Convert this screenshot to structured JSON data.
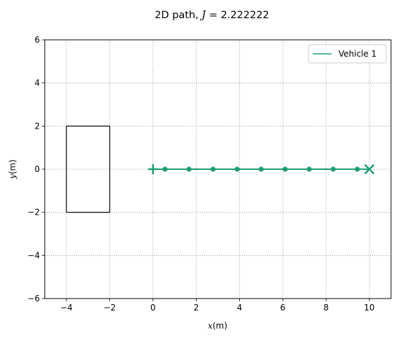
{
  "chart_data": {
    "type": "line",
    "title": "2D path, J = 2.222222",
    "title_prefix": "2D path, ",
    "title_var": "J",
    "title_eq": " = 2.222222",
    "xlabel_var": "x",
    "xlabel_unit": "(m)",
    "ylabel_var": "y",
    "ylabel_unit": "(m)",
    "xlim": [
      -5,
      11
    ],
    "ylim": [
      -6,
      6
    ],
    "xticks": [
      -4,
      -2,
      0,
      2,
      4,
      6,
      8,
      10
    ],
    "xtick_labels": [
      "−4",
      "−2",
      "0",
      "2",
      "4",
      "6",
      "8",
      "10"
    ],
    "yticks": [
      -6,
      -4,
      -2,
      0,
      2,
      4,
      6
    ],
    "ytick_labels": [
      "−6",
      "−4",
      "−2",
      "0",
      "2",
      "4",
      "6"
    ],
    "grid": true,
    "legend_position": "top-right",
    "series": [
      {
        "name": "Vehicle 1",
        "color": "#1b9e77",
        "x": [
          0,
          0.556,
          1.667,
          2.778,
          3.889,
          5.0,
          6.111,
          7.222,
          8.333,
          9.444,
          10
        ],
        "y": [
          0,
          0,
          0,
          0,
          0,
          0,
          0,
          0,
          0,
          0,
          0
        ],
        "waypoints_x": [
          0.556,
          1.667,
          2.778,
          3.889,
          5.0,
          6.111,
          7.222,
          8.333,
          9.444
        ],
        "waypoints_y": [
          0,
          0,
          0,
          0,
          0,
          0,
          0,
          0,
          0
        ],
        "start": [
          0,
          0
        ],
        "start_marker": "plus",
        "end": [
          10,
          0
        ],
        "end_marker": "x"
      }
    ],
    "obstacles": [
      {
        "shape": "rectangle",
        "x_min": -4,
        "x_max": -2,
        "y_min": -2,
        "y_max": 2,
        "color": "#000000"
      }
    ]
  }
}
